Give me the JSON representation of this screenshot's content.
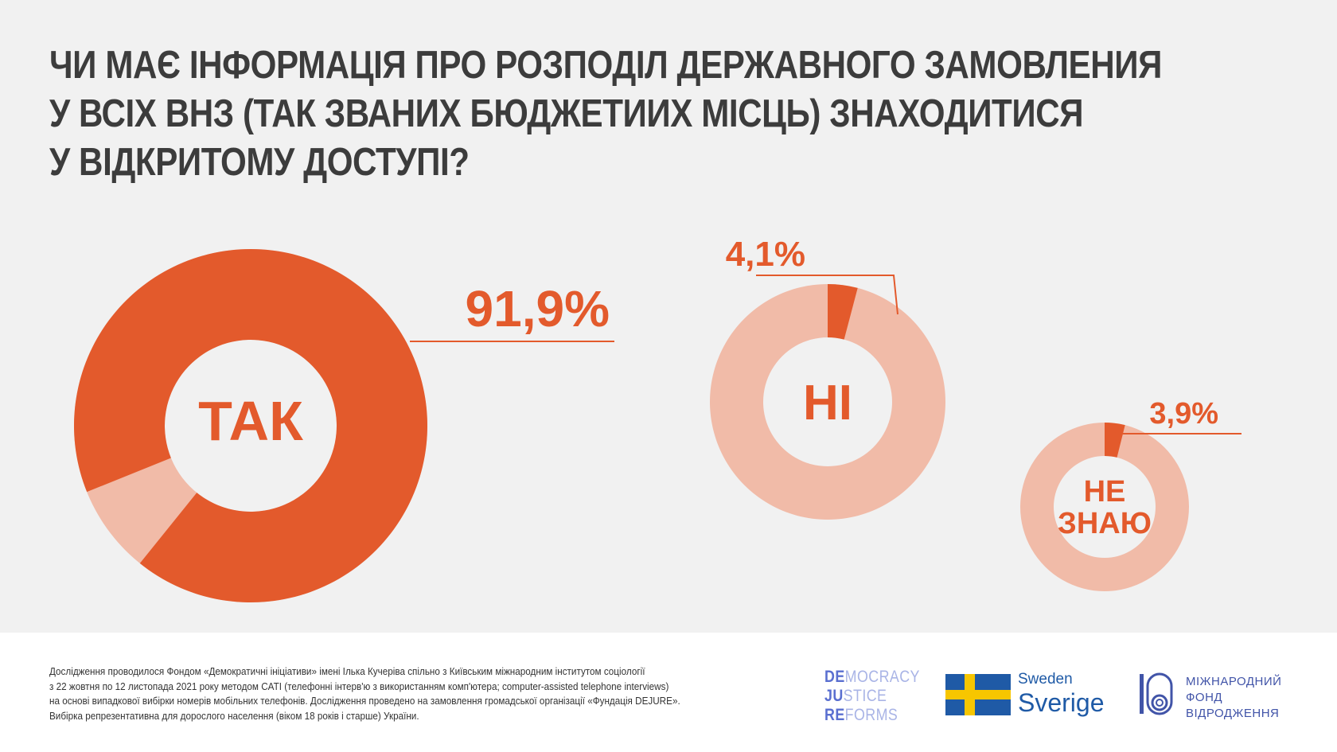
{
  "title_lines": [
    "ЧИ МАЄ ІНФОРМАЦІЯ ПРО РОЗПОДІЛ ДЕРЖАВНОГО ЗАМОВЛЕНИЯ",
    "У ВСІХ ВНЗ (ТАК ЗВАНИХ БЮДЖЕТИИХ МІСЦЬ) ЗНАХОДИТИСЯ",
    "У ВІДКРИТОМУ ДОСТУПІ?"
  ],
  "colors": {
    "accent": "#e35a2c",
    "accent_light": "#f1bba8",
    "title": "#3c3c3c",
    "background": "#f1f1f1",
    "footer_background": "#ffffff"
  },
  "chart_data": {
    "type": "pie",
    "style": "donut-per-category",
    "categories": [
      "ТАК",
      "НІ",
      "НЕ ЗНАЮ"
    ],
    "center_labels": [
      [
        "ТАК"
      ],
      [
        "НІ"
      ],
      [
        "НЕ",
        "ЗНАЮ"
      ]
    ],
    "values": [
      91.9,
      4.1,
      3.9
    ],
    "value_labels": [
      "91,9%",
      "4,1%",
      "3,9%"
    ],
    "unit": "%"
  },
  "footnote_lines": [
    "Дослідження проводилося Фондом «Демократичні ініціативи» імені Ілька Кучеріва спільно з Київським міжнародним інститутом соціології",
    "з 22 жовтня по 12 листопада 2021 року методом CATI (телефонні інтерв'ю з використанням комп'ютера; computer-assisted telephone interviews)",
    "на основі випадкової вибірки номерів мобільних телефонів. Дослідження проведено на замовлення громадської організації «Фундація DEJURE».",
    "Вибірка репрезентативна для дорослого населення (віком 18 років і старше) України."
  ],
  "logos": {
    "djr": [
      {
        "bold": "DE",
        "rest": "MOCRACY"
      },
      {
        "bold": "JU",
        "rest": "STICE"
      },
      {
        "bold": "RE",
        "rest": "FORMS"
      }
    ],
    "sweden_small": "Sweden",
    "sweden_large": "Sverige",
    "irf_lines": [
      "МІЖНАРОДНИЙ",
      "ФОНД",
      "ВІДРОДЖЕННЯ"
    ]
  }
}
